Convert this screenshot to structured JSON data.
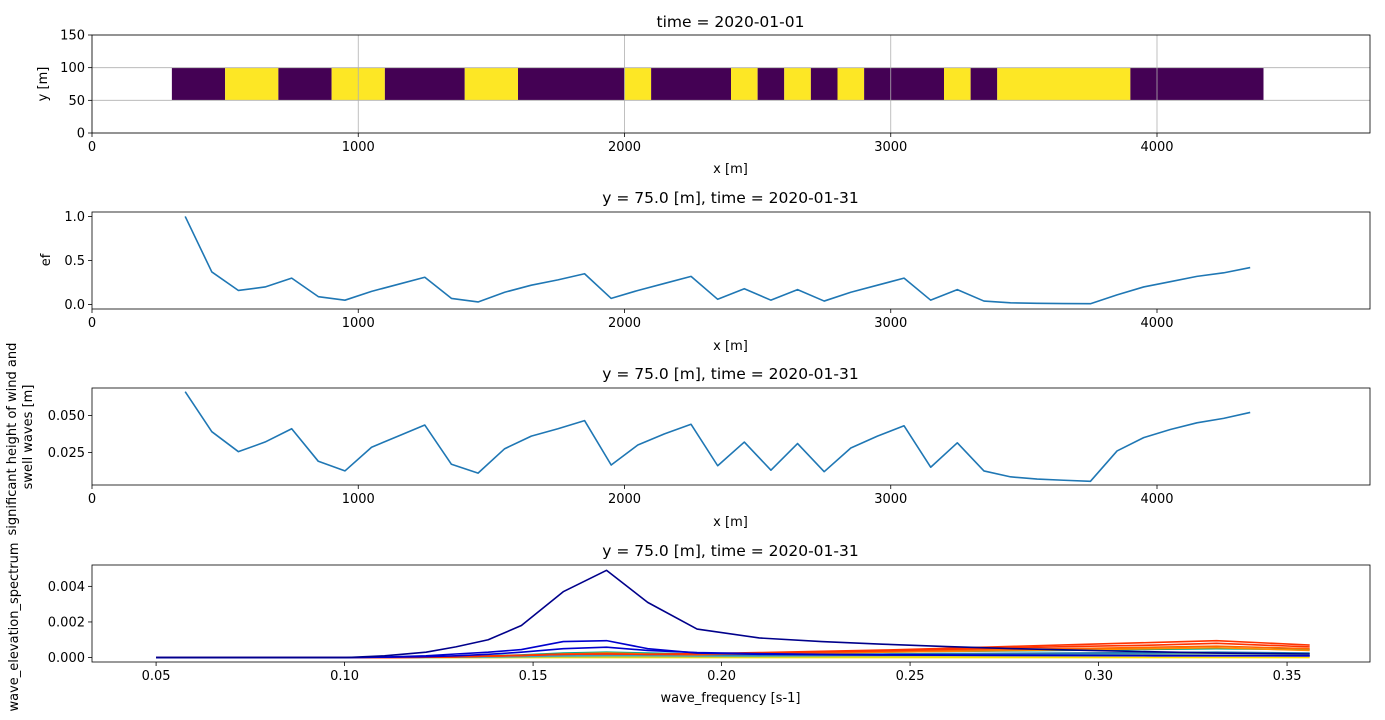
{
  "colors": {
    "line": "#1f77b4",
    "viridis_low": "#440154",
    "viridis_high": "#fde725",
    "grid": "#b0b0b0",
    "spectrum": [
      "#ffdf00",
      "#d2d22e",
      "#7fbf7f",
      "#3f9fbf",
      "#1f77b4",
      "#00aa88",
      "#ff8c00",
      "#ff6600",
      "#ff3300",
      "#0000cd",
      "#00008b"
    ]
  },
  "chart_data": [
    {
      "type": "heatmap",
      "title": "time = 2020-01-01",
      "xlabel": "x [m]",
      "ylabel": "y [m]",
      "xlim": [
        0,
        4800
      ],
      "ylim": [
        0,
        150
      ],
      "xticks": [
        0,
        1000,
        2000,
        3000,
        4000
      ],
      "yticks": [
        0,
        50,
        100,
        150
      ],
      "grid": true,
      "y_range": [
        50,
        100
      ],
      "segments": [
        {
          "x0": 300,
          "x1": 500,
          "value": 0
        },
        {
          "x0": 500,
          "x1": 700,
          "value": 1
        },
        {
          "x0": 700,
          "x1": 900,
          "value": 0
        },
        {
          "x0": 900,
          "x1": 1100,
          "value": 1
        },
        {
          "x0": 1100,
          "x1": 1400,
          "value": 0
        },
        {
          "x0": 1400,
          "x1": 1600,
          "value": 1
        },
        {
          "x0": 1600,
          "x1": 2000,
          "value": 0
        },
        {
          "x0": 2000,
          "x1": 2100,
          "value": 1
        },
        {
          "x0": 2100,
          "x1": 2400,
          "value": 0
        },
        {
          "x0": 2400,
          "x1": 2500,
          "value": 1
        },
        {
          "x0": 2500,
          "x1": 2600,
          "value": 0
        },
        {
          "x0": 2600,
          "x1": 2700,
          "value": 1
        },
        {
          "x0": 2700,
          "x1": 2800,
          "value": 0
        },
        {
          "x0": 2800,
          "x1": 2900,
          "value": 1
        },
        {
          "x0": 2900,
          "x1": 3200,
          "value": 0
        },
        {
          "x0": 3200,
          "x1": 3300,
          "value": 1
        },
        {
          "x0": 3300,
          "x1": 3400,
          "value": 0
        },
        {
          "x0": 3400,
          "x1": 3900,
          "value": 1
        },
        {
          "x0": 3900,
          "x1": 4400,
          "value": 0
        }
      ]
    },
    {
      "type": "line",
      "title": "y = 75.0 [m], time = 2020-01-31",
      "xlabel": "x [m]",
      "ylabel": "ef",
      "xlim": [
        0,
        4800
      ],
      "ylim": [
        -0.05,
        1.05
      ],
      "xticks": [
        0,
        1000,
        2000,
        3000,
        4000
      ],
      "yticks": [
        0.0,
        0.5,
        1.0
      ],
      "ytick_labels": [
        "0.0",
        "0.5",
        "1.0"
      ],
      "series": [
        {
          "x": [
            350,
            450,
            550,
            650,
            750,
            850,
            950,
            1050,
            1150,
            1250,
            1350,
            1450,
            1550,
            1650,
            1750,
            1850,
            1950,
            2050,
            2150,
            2250,
            2350,
            2450,
            2550,
            2650,
            2750,
            2850,
            2950,
            3050,
            3150,
            3250,
            3350,
            3450,
            3550,
            3650,
            3750,
            3850,
            3950,
            4050,
            4150,
            4250,
            4350
          ],
          "values": [
            1.0,
            0.37,
            0.16,
            0.2,
            0.3,
            0.09,
            0.05,
            0.15,
            0.23,
            0.31,
            0.07,
            0.03,
            0.14,
            0.22,
            0.28,
            0.35,
            0.07,
            0.16,
            0.24,
            0.32,
            0.06,
            0.18,
            0.05,
            0.17,
            0.04,
            0.14,
            0.22,
            0.3,
            0.05,
            0.17,
            0.04,
            0.02,
            0.015,
            0.012,
            0.01,
            0.11,
            0.2,
            0.26,
            0.32,
            0.36,
            0.42
          ]
        }
      ]
    },
    {
      "type": "line",
      "title": "y = 75.0 [m], time = 2020-01-31",
      "xlabel": "x [m]",
      "ylabel": "significant height of wind and swell waves [m]",
      "ylabel_lines": [
        "significant height of wind and",
        "swell waves [m]"
      ],
      "xlim": [
        0,
        4800
      ],
      "ylim": [
        0.003,
        0.0685
      ],
      "xticks": [
        0,
        1000,
        2000,
        3000,
        4000
      ],
      "yticks": [
        0.025,
        0.05
      ],
      "ytick_labels": [
        "0.025",
        "0.050"
      ],
      "series": [
        {
          "x": [
            350,
            450,
            550,
            650,
            750,
            850,
            950,
            1050,
            1150,
            1250,
            1350,
            1450,
            1550,
            1650,
            1750,
            1850,
            1950,
            2050,
            2150,
            2250,
            2350,
            2450,
            2550,
            2650,
            2750,
            2850,
            2950,
            3050,
            3150,
            3250,
            3350,
            3450,
            3550,
            3650,
            3750,
            3850,
            3950,
            4050,
            4150,
            4250,
            4350
          ],
          "values": [
            0.066,
            0.039,
            0.0255,
            0.032,
            0.041,
            0.019,
            0.0125,
            0.0285,
            0.036,
            0.0435,
            0.017,
            0.011,
            0.0275,
            0.036,
            0.041,
            0.0465,
            0.0165,
            0.03,
            0.0375,
            0.044,
            0.016,
            0.032,
            0.013,
            0.031,
            0.012,
            0.028,
            0.036,
            0.043,
            0.015,
            0.0315,
            0.0125,
            0.0085,
            0.007,
            0.0062,
            0.0055,
            0.026,
            0.035,
            0.0405,
            0.045,
            0.048,
            0.052
          ]
        }
      ]
    },
    {
      "type": "line",
      "title": "y = 75.0 [m], time = 2020-01-31",
      "xlabel": "wave_frequency [s-1]",
      "ylabel": "wave_elevation_spectrum",
      "xlim": [
        0.033,
        0.372
      ],
      "ylim": [
        -0.00025,
        0.0052
      ],
      "xticks": [
        0.05,
        0.1,
        0.15,
        0.2,
        0.25,
        0.3,
        0.35
      ],
      "xtick_labels": [
        "0.05",
        "0.10",
        "0.15",
        "0.20",
        "0.25",
        "0.30",
        "0.35"
      ],
      "yticks": [
        0.0,
        0.002,
        0.004
      ],
      "ytick_labels": [
        "0.000",
        "0.002",
        "0.004"
      ],
      "x": [
        0.05,
        0.0595,
        0.0702,
        0.0787,
        0.0879,
        0.1004,
        0.1106,
        0.1216,
        0.1295,
        0.1381,
        0.1469,
        0.158,
        0.1695,
        0.1804,
        0.1935,
        0.21,
        0.2265,
        0.2426,
        0.2597,
        0.2777,
        0.2977,
        0.3149,
        0.3313,
        0.356
      ],
      "series": [
        {
          "color_index": 0,
          "values": [
            0,
            0,
            0,
            0,
            0,
            0,
            0,
            0,
            0,
            0,
            0,
            0,
            0,
            0,
            0,
            0,
            0,
            0,
            0,
            0,
            0,
            0,
            0,
            0
          ]
        },
        {
          "color_index": 1,
          "values": [
            0,
            0,
            0,
            0,
            0,
            0,
            0,
            0,
            0,
            0,
            1e-05,
            2e-05,
            3e-05,
            3e-05,
            3e-05,
            4e-05,
            5e-05,
            6e-05,
            7e-05,
            8e-05,
            8e-05,
            9e-05,
            0.0001,
            0.0001
          ]
        },
        {
          "color_index": 2,
          "values": [
            0,
            0,
            0,
            0,
            0,
            0,
            0,
            1e-05,
            2e-05,
            3e-05,
            5e-05,
            8e-05,
            0.0001,
            0.0001,
            8e-05,
            8e-05,
            0.0001,
            0.00012,
            0.00014,
            0.00016,
            0.00018,
            0.0002,
            0.00022,
            0.00018
          ]
        },
        {
          "color_index": 3,
          "values": [
            0,
            0,
            0,
            0,
            0,
            0,
            0,
            1e-05,
            2e-05,
            4e-05,
            6e-05,
            0.0001,
            0.00012,
            0.00012,
            0.0001,
            0.0001,
            0.00012,
            0.00015,
            0.00018,
            0.0002,
            0.00022,
            0.00025,
            0.00028,
            0.00022
          ]
        },
        {
          "color_index": 4,
          "values": [
            0,
            0,
            0,
            0,
            0,
            0,
            0,
            2e-05,
            4e-05,
            8e-05,
            0.00012,
            0.00018,
            0.0002,
            0.00018,
            0.00015,
            0.00016,
            0.00018,
            0.0002,
            0.00022,
            0.00024,
            0.00026,
            0.00028,
            0.0003,
            0.00025
          ]
        },
        {
          "color_index": 5,
          "values": [
            0,
            0,
            0,
            0,
            0,
            0,
            0,
            2e-05,
            5e-05,
            0.0001,
            0.00015,
            0.00025,
            0.0003,
            0.00025,
            0.0002,
            0.00022,
            0.00026,
            0.0003,
            0.00034,
            0.00038,
            0.00042,
            0.00046,
            0.0005,
            0.00045
          ]
        },
        {
          "color_index": 6,
          "values": [
            0,
            0,
            0,
            0,
            0,
            0,
            0,
            2e-05,
            4e-05,
            8e-05,
            0.00012,
            0.0002,
            0.00025,
            0.0002,
            0.00018,
            0.0002,
            0.00025,
            0.0003,
            0.00035,
            0.0004,
            0.00045,
            0.0005,
            0.00055,
            0.0004
          ]
        },
        {
          "color_index": 7,
          "values": [
            0,
            0,
            0,
            0,
            0,
            0,
            0,
            2e-05,
            4e-05,
            8e-05,
            0.00012,
            0.0002,
            0.00022,
            0.00018,
            0.00016,
            0.00022,
            0.00028,
            0.00034,
            0.0004,
            0.00046,
            0.00052,
            0.00058,
            0.00064,
            0.0005
          ]
        },
        {
          "color_index": 8,
          "values": [
            0,
            0,
            0,
            0,
            0,
            0,
            0,
            2e-05,
            4e-05,
            8e-05,
            0.00012,
            0.00018,
            0.0002,
            0.00018,
            0.0002,
            0.00026,
            0.00032,
            0.00038,
            0.00046,
            0.00055,
            0.00064,
            0.0007,
            0.0008,
            0.0006
          ]
        },
        {
          "color_index": 8,
          "values": [
            0,
            0,
            0,
            0,
            0,
            0,
            0,
            2e-05,
            4e-05,
            8e-05,
            0.00012,
            0.00018,
            0.0002,
            0.00018,
            0.00022,
            0.00028,
            0.00035,
            0.00042,
            0.00052,
            0.00063,
            0.00075,
            0.00085,
            0.00095,
            0.0007
          ]
        },
        {
          "color_index": 9,
          "values": [
            0,
            0,
            0,
            0,
            0,
            0,
            2e-05,
            5e-05,
            0.0001,
            0.00018,
            0.0003,
            0.0005,
            0.00058,
            0.0004,
            0.00028,
            0.00022,
            0.00018,
            0.00016,
            0.00015,
            0.00014,
            0.00013,
            0.00012,
            0.00011,
            0.0001
          ]
        },
        {
          "color_index": 9,
          "values": [
            0,
            0,
            0,
            0,
            0,
            0,
            3e-05,
            0.0001,
            0.0002,
            0.0003,
            0.00045,
            0.0009,
            0.00095,
            0.0005,
            0.00025,
            0.00018,
            0.00016,
            0.00014,
            0.00013,
            0.00012,
            0.00011,
            0.0001,
            0.0001,
            0.0001
          ]
        },
        {
          "color_index": 10,
          "values": [
            0,
            0,
            0,
            0,
            0,
            0,
            0.0001,
            0.0003,
            0.0006,
            0.001,
            0.0018,
            0.0037,
            0.0049,
            0.0031,
            0.0016,
            0.0011,
            0.0009,
            0.00075,
            0.00062,
            0.0005,
            0.0004,
            0.00032,
            0.00025,
            0.0002
          ]
        }
      ]
    }
  ]
}
